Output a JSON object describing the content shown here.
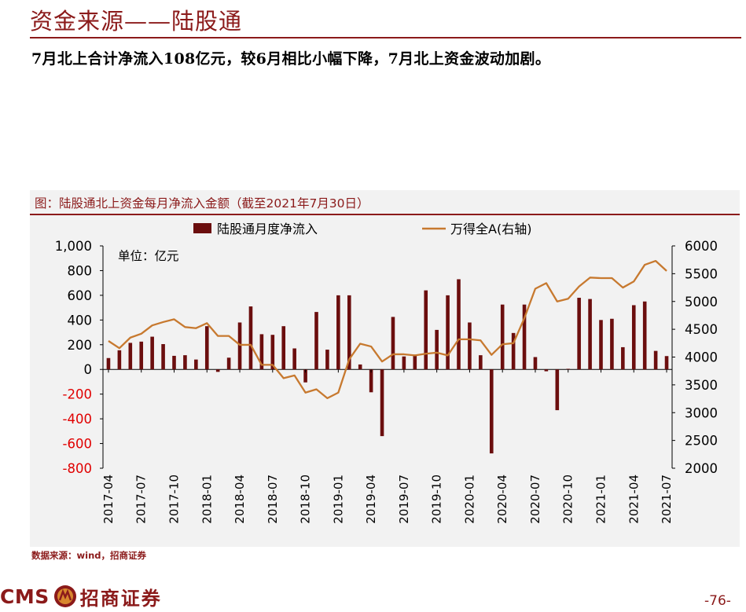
{
  "page": {
    "title": "资金来源——陆股通",
    "subtitle": "7月北上合计净流入108亿元，较6月相比小幅下降，7月北上资金波动加剧。",
    "source": "数据来源：wind，招商证券",
    "logo_text": "CMS",
    "logo_cn": "招商证券",
    "page_number": "-76-"
  },
  "chart_data": {
    "type": "bar+line",
    "title": "图：陆股通北上资金每月净流入金额（截至2021年7月30日）",
    "unit_label": "单位：亿元",
    "legend_placement": "top-center",
    "series": [
      {
        "name": "陆股通月度净流入",
        "type": "bar",
        "axis": "left",
        "color": "#6b0e0e",
        "values": [
          92,
          155,
          215,
          225,
          265,
          205,
          110,
          115,
          80,
          350,
          -20,
          95,
          380,
          510,
          285,
          280,
          350,
          170,
          -105,
          465,
          160,
          600,
          600,
          40,
          -185,
          -540,
          425,
          105,
          120,
          640,
          320,
          600,
          730,
          380,
          115,
          -680,
          525,
          295,
          525,
          100,
          -15,
          -330,
          5,
          580,
          570,
          400,
          410,
          180,
          520,
          550,
          150,
          108
        ]
      },
      {
        "name": "万得全A(右轴)",
        "type": "line",
        "axis": "right",
        "color": "#c7792f",
        "values": [
          4290,
          4160,
          4350,
          4420,
          4570,
          4630,
          4680,
          4540,
          4520,
          4610,
          4380,
          4380,
          4220,
          4220,
          3860,
          3860,
          3620,
          3670,
          3360,
          3420,
          3260,
          3360,
          3960,
          4240,
          4190,
          3920,
          4050,
          4050,
          4030,
          4060,
          4080,
          4030,
          4320,
          4320,
          4300,
          4040,
          4230,
          4250,
          4700,
          5230,
          5330,
          5000,
          5050,
          5270,
          5430,
          5420,
          5420,
          5250,
          5360,
          5660,
          5730,
          5550
        ]
      }
    ],
    "x_tick_labels": [
      "2017-04",
      "2017-07",
      "2017-10",
      "2018-01",
      "2018-04",
      "2018-07",
      "2018-10",
      "2019-01",
      "2019-04",
      "2019-07",
      "2019-10",
      "2020-01",
      "2020-04",
      "2020-07",
      "2020-10",
      "2021-01",
      "2021-04",
      "2021-07"
    ],
    "y_left": {
      "min": -800,
      "max": 1000,
      "step": 200,
      "labels": [
        "1,000",
        "800",
        "600",
        "400",
        "200",
        "0",
        "-200",
        "-400",
        "-600",
        "-800"
      ],
      "negative_color": "#e00000"
    },
    "y_right": {
      "min": 2000,
      "max": 6000,
      "step": 500,
      "labels": [
        "6000",
        "5500",
        "5000",
        "4500",
        "4000",
        "3500",
        "3000",
        "2500",
        "2000"
      ]
    },
    "grid": false
  }
}
